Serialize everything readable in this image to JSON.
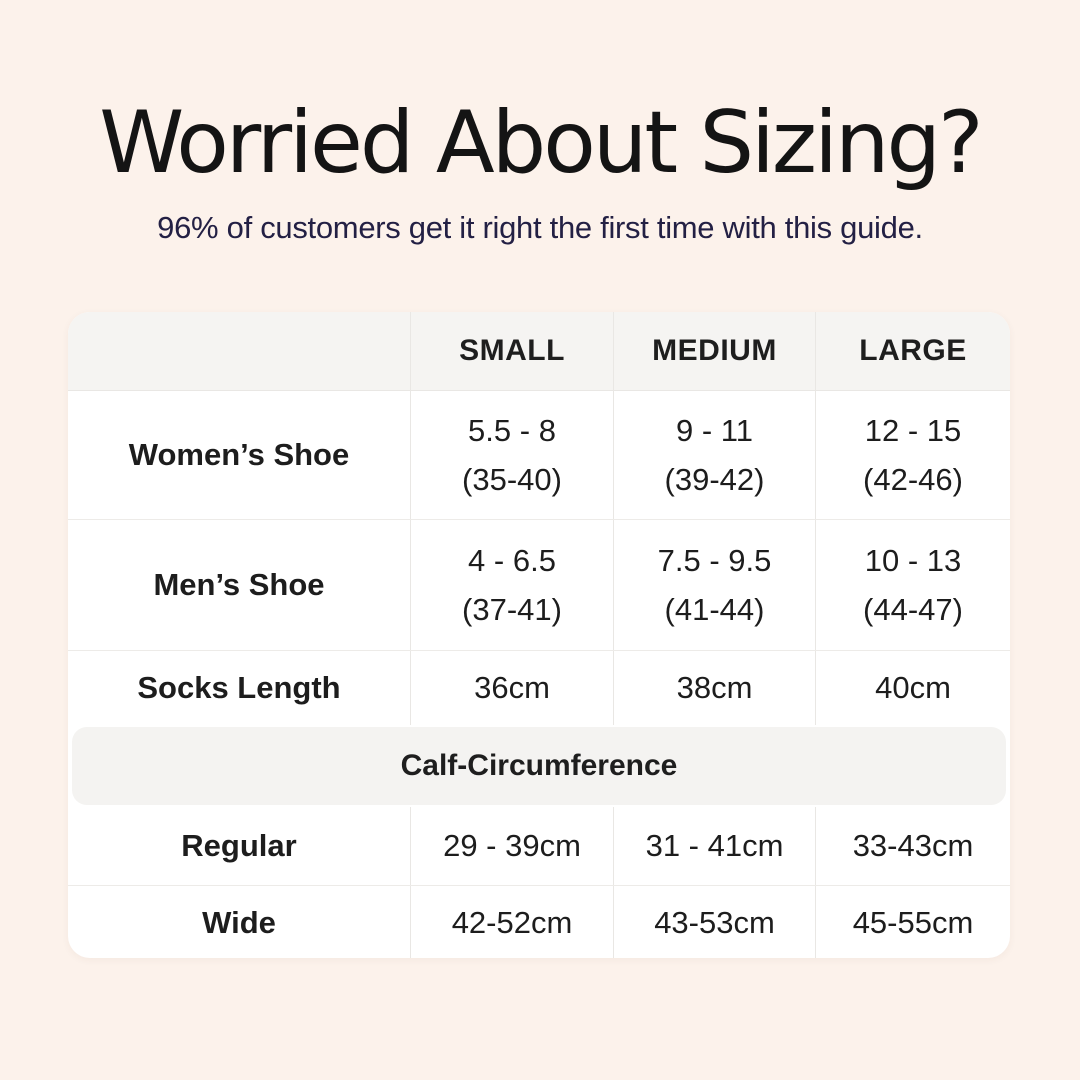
{
  "chart_data": {
    "type": "table",
    "title": "Worried About Sizing?",
    "subtitle": "96% of customers get it right the first time with this guide.",
    "columns": [
      "SMALL",
      "MEDIUM",
      "LARGE"
    ],
    "rows": [
      {
        "label": "Women’s Shoe",
        "cells": [
          [
            "5.5 - 8",
            "(35-40)"
          ],
          [
            "9 - 11",
            "(39-42)"
          ],
          [
            "12 - 15",
            "(42-46)"
          ]
        ]
      },
      {
        "label": "Men’s Shoe",
        "cells": [
          [
            "4 - 6.5",
            "(37-41)"
          ],
          [
            "7.5 - 9.5",
            "(41-44)"
          ],
          [
            "10 - 13",
            "(44-47)"
          ]
        ]
      },
      {
        "label": "Socks Length",
        "cells": [
          [
            "36cm"
          ],
          [
            "38cm"
          ],
          [
            "40cm"
          ]
        ]
      }
    ],
    "band_label": "Calf-Circumference",
    "band_rows": [
      {
        "label": "Regular",
        "cells": [
          [
            "29 - 39cm"
          ],
          [
            "31 - 41cm"
          ],
          [
            "33-43cm"
          ]
        ]
      },
      {
        "label": "Wide",
        "cells": [
          [
            "42-52cm"
          ],
          [
            "43-53cm"
          ],
          [
            "45-55cm"
          ]
        ]
      }
    ]
  },
  "colors": {
    "page_background": "#FCF2EB",
    "card_background": "#FFFFFF",
    "header_band_gray": "#F5F4F2",
    "subtitle_navy": "#232044",
    "title_black": "#141414"
  }
}
